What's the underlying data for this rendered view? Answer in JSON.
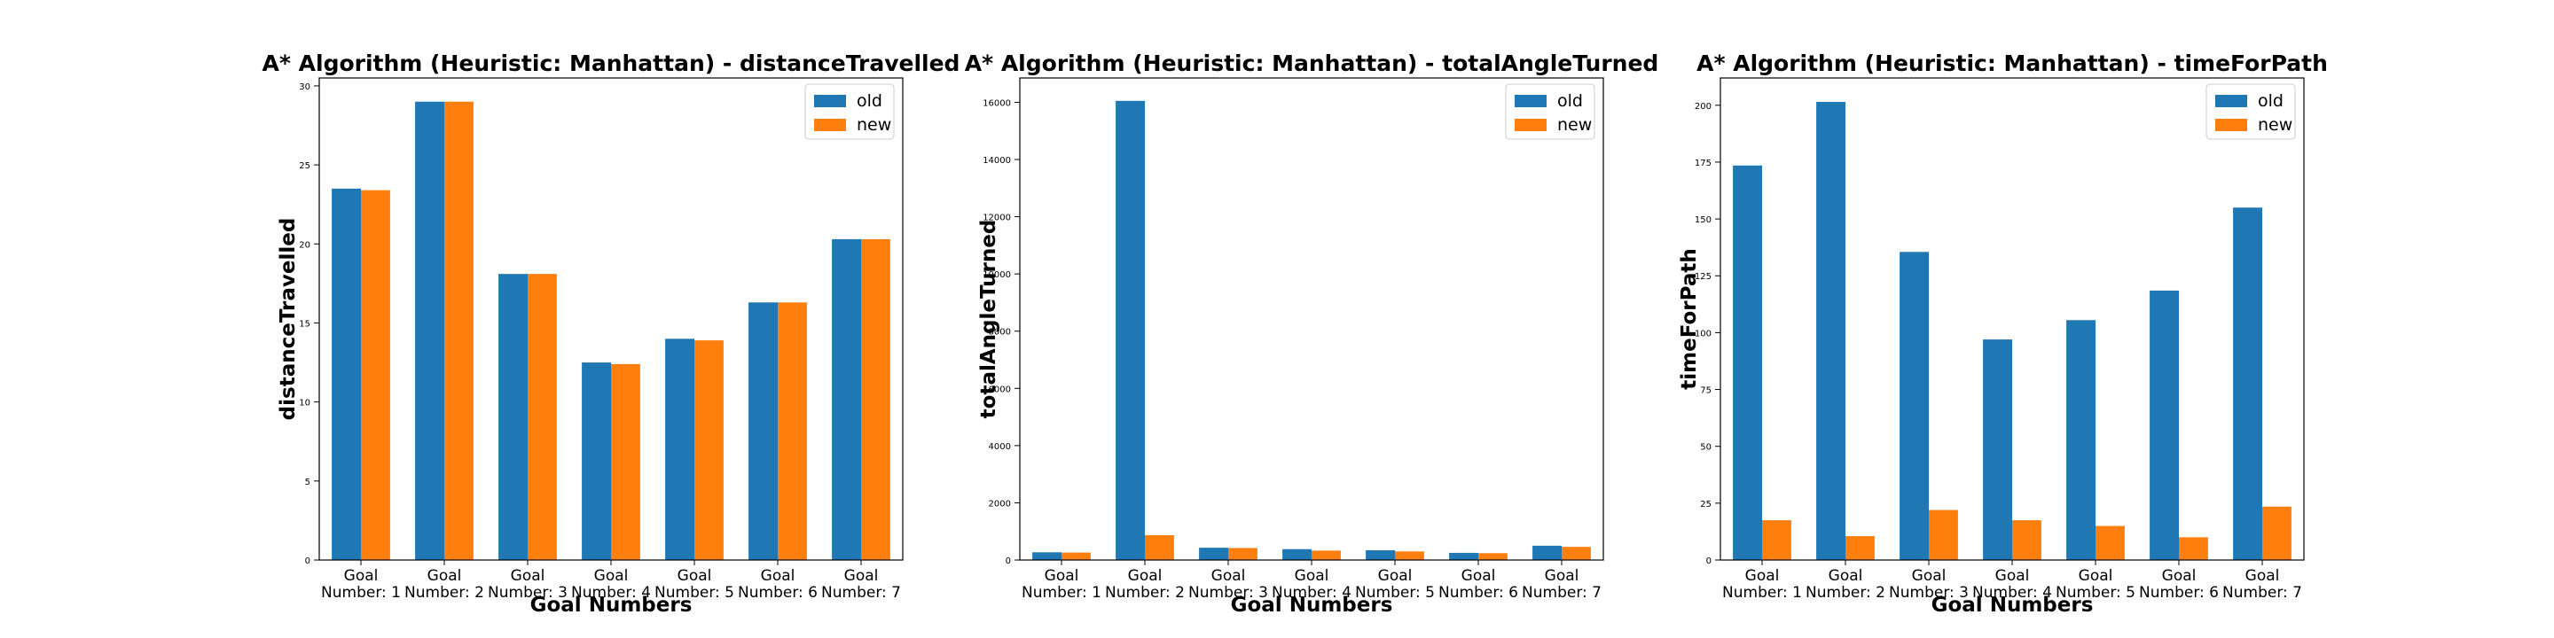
{
  "colors": {
    "old": "#1f77b4",
    "new": "#ff7f0e",
    "axis": "#000000",
    "legend_border": "#cccccc"
  },
  "chart_data": [
    {
      "type": "bar",
      "title": "A* Algorithm (Heuristic: Manhattan) - distanceTravelled",
      "xlabel": "Goal Numbers",
      "ylabel": "distanceTravelled",
      "categories": [
        [
          "Goal",
          "Number: 1"
        ],
        [
          "Goal",
          "Number: 2"
        ],
        [
          "Goal",
          "Number: 3"
        ],
        [
          "Goal",
          "Number: 4"
        ],
        [
          "Goal",
          "Number: 5"
        ],
        [
          "Goal",
          "Number: 6"
        ],
        [
          "Goal",
          "Number: 7"
        ]
      ],
      "series": [
        {
          "name": "old",
          "values": [
            23.5,
            29.0,
            18.1,
            12.5,
            14.0,
            16.3,
            20.3
          ]
        },
        {
          "name": "new",
          "values": [
            23.4,
            29.0,
            18.1,
            12.4,
            13.9,
            16.3,
            20.3
          ]
        }
      ],
      "ylim": [
        0,
        30.5
      ],
      "yticks": [
        0,
        5,
        10,
        15,
        20,
        25,
        30
      ],
      "legend": "top-right",
      "grid": false
    },
    {
      "type": "bar",
      "title": "A* Algorithm (Heuristic: Manhattan) - totalAngleTurned",
      "xlabel": "Goal Numbers",
      "ylabel": "totalAngleTurned",
      "categories": [
        [
          "Goal",
          "Number: 1"
        ],
        [
          "Goal",
          "Number: 2"
        ],
        [
          "Goal",
          "Number: 3"
        ],
        [
          "Goal",
          "Number: 4"
        ],
        [
          "Goal",
          "Number: 5"
        ],
        [
          "Goal",
          "Number: 6"
        ],
        [
          "Goal",
          "Number: 7"
        ]
      ],
      "series": [
        {
          "name": "old",
          "values": [
            270,
            16050,
            430,
            380,
            340,
            250,
            500
          ]
        },
        {
          "name": "new",
          "values": [
            260,
            870,
            420,
            330,
            300,
            240,
            460
          ]
        }
      ],
      "ylim": [
        0,
        16850
      ],
      "yticks": [
        0,
        2000,
        4000,
        6000,
        8000,
        10000,
        12000,
        14000,
        16000
      ],
      "legend": "top-right",
      "grid": false
    },
    {
      "type": "bar",
      "title": "A* Algorithm (Heuristic: Manhattan) - timeForPath",
      "xlabel": "Goal Numbers",
      "ylabel": "timeForPath",
      "categories": [
        [
          "Goal",
          "Number: 1"
        ],
        [
          "Goal",
          "Number: 2"
        ],
        [
          "Goal",
          "Number: 3"
        ],
        [
          "Goal",
          "Number: 4"
        ],
        [
          "Goal",
          "Number: 5"
        ],
        [
          "Goal",
          "Number: 6"
        ],
        [
          "Goal",
          "Number: 7"
        ]
      ],
      "series": [
        {
          "name": "old",
          "values": [
            173.5,
            201.5,
            135.5,
            97.0,
            105.5,
            118.5,
            155.0
          ]
        },
        {
          "name": "new",
          "values": [
            17.5,
            10.5,
            22.0,
            17.5,
            15.0,
            10.0,
            23.5
          ]
        }
      ],
      "ylim": [
        0,
        212
      ],
      "yticks": [
        0,
        25,
        50,
        75,
        100,
        125,
        150,
        175,
        200
      ],
      "legend": "top-right",
      "grid": false
    }
  ]
}
